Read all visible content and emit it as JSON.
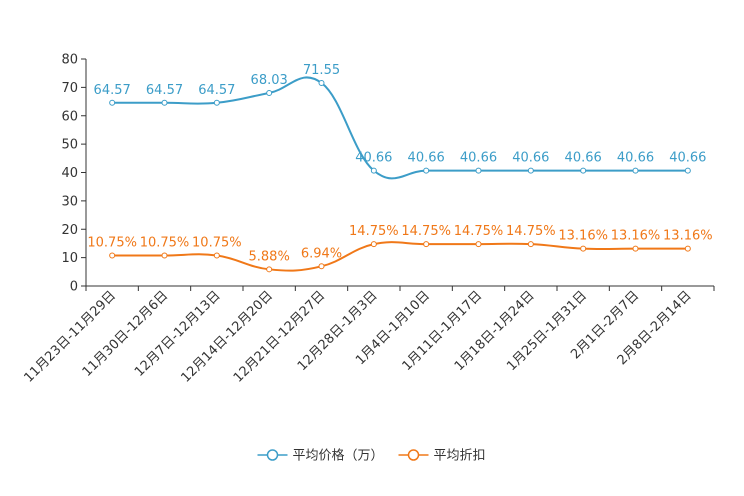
{
  "chart_data": {
    "type": "line",
    "title": "",
    "xlabel": "",
    "ylabel": "",
    "ylim": [
      0,
      80
    ],
    "yticks": [
      0,
      10,
      20,
      30,
      40,
      50,
      60,
      70,
      80
    ],
    "grid": false,
    "legend_position": "bottom-center",
    "categories": [
      "11月23日-11月29日",
      "11月30日-12月6日",
      "12月7日-12月13日",
      "12月14日-12月20日",
      "12月21日-12月27日",
      "12月28日-1月3日",
      "1月4日-1月10日",
      "1月11日-1月17日",
      "1月18日-1月24日",
      "1月25日-1月31日",
      "2月1日-2月7日",
      "2月8日-2月14日"
    ],
    "series": [
      {
        "name": "平均价格（万）",
        "color": "#3c9dc8",
        "values": [
          64.57,
          64.57,
          64.57,
          68.03,
          71.55,
          40.66,
          40.66,
          40.66,
          40.66,
          40.66,
          40.66,
          40.66
        ],
        "labels": [
          "64.57",
          "64.57",
          "64.57",
          "68.03",
          "71.55",
          "40.66",
          "40.66",
          "40.66",
          "40.66",
          "40.66",
          "40.66",
          "40.66"
        ]
      },
      {
        "name": "平均折扣",
        "color": "#f07818",
        "values": [
          10.75,
          10.75,
          10.75,
          5.88,
          6.94,
          14.75,
          14.75,
          14.75,
          14.75,
          13.16,
          13.16,
          13.16
        ],
        "labels": [
          "10.75%",
          "10.75%",
          "10.75%",
          "5.88%",
          "6.94%",
          "14.75%",
          "14.75%",
          "14.75%",
          "14.75%",
          "13.16%",
          "13.16%",
          "13.16%"
        ]
      }
    ]
  }
}
